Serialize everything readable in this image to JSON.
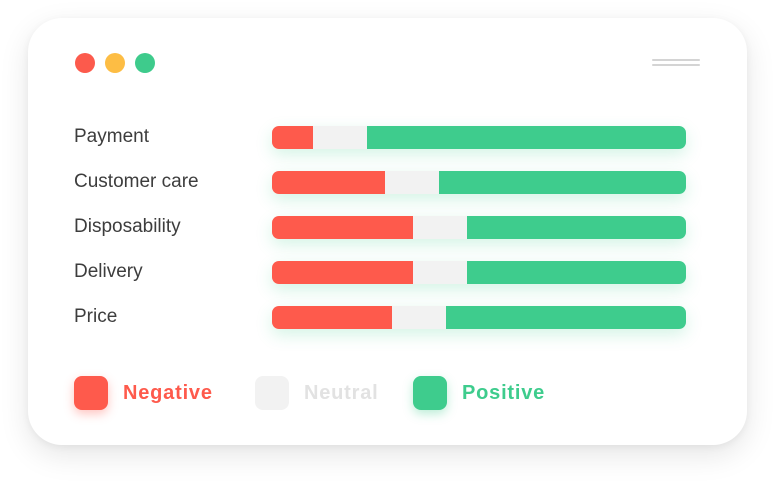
{
  "window": {
    "controls": [
      "close-dot",
      "minimize-dot",
      "maximize-dot"
    ],
    "control_colors": [
      "#fc5a4c",
      "#fdbd44",
      "#3ecb8c"
    ],
    "menu_icon": "hamburger-icon"
  },
  "colors": {
    "negative": "#fe5a4c",
    "neutral": "#f2f2f2",
    "positive": "#3ecc8d"
  },
  "chart_data": {
    "type": "bar",
    "stacked": true,
    "orientation": "horizontal",
    "categories": [
      "Payment",
      "Customer care",
      "Disposability",
      "Delivery",
      "Price"
    ],
    "series": [
      {
        "name": "Negative",
        "values": [
          10,
          27,
          34,
          34,
          29
        ]
      },
      {
        "name": "Neutral",
        "values": [
          13,
          13,
          13,
          13,
          13
        ]
      },
      {
        "name": "Positive",
        "values": [
          77,
          59,
          53,
          53,
          58
        ]
      }
    ],
    "title": "",
    "xlabel": "",
    "ylabel": "",
    "legend_position": "bottom-left",
    "grid": false
  }
}
